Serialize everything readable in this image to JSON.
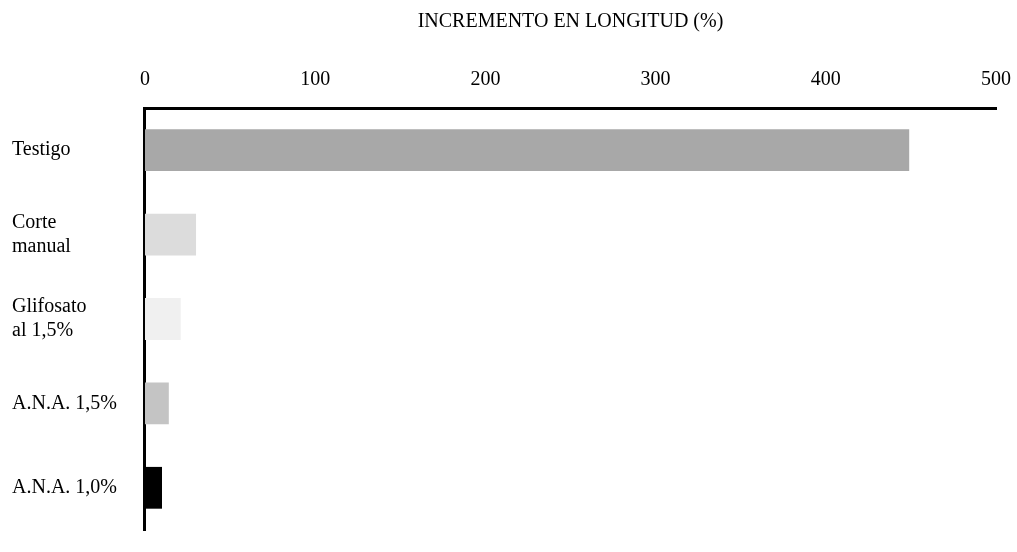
{
  "chart_data": {
    "type": "bar",
    "orientation": "horizontal",
    "xlabel": "INCREMENTO EN LONGITUD (%)",
    "categories": [
      "Testigo",
      "Corte\nmanual",
      "Glifosato\nal 1,5%",
      "A.N.A. 1,5%",
      "A.N.A. 1,0%"
    ],
    "values": [
      449,
      30,
      21,
      14,
      10
    ],
    "colors": [
      "#a8a8a8",
      "#dcdcdc",
      "#f0f0f0",
      "#c4c4c4",
      "#000000"
    ],
    "xlim": [
      0,
      500
    ],
    "xticks": [
      0,
      100,
      200,
      300,
      400,
      500
    ],
    "grid": false,
    "legend": false
  }
}
